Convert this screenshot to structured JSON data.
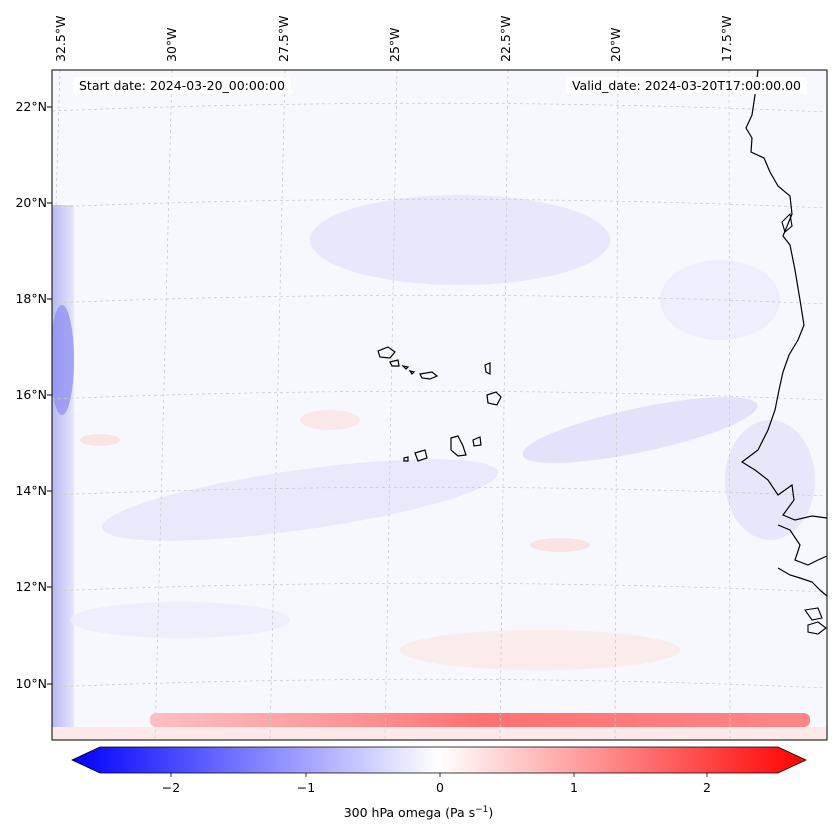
{
  "map": {
    "start_date_label": "Start date: 2024-03-20_00:00:00",
    "valid_date_label": "Valid_date: 2024-03-20T17:00:00.00",
    "lat_labels": [
      "22°N",
      "20°N",
      "18°N",
      "16°N",
      "14°N",
      "12°N",
      "10°N"
    ],
    "lon_labels": [
      "32.5°W",
      "30°W",
      "27.5°W",
      "25°W",
      "22.5°W",
      "20°W",
      "17.5°W"
    ],
    "field_colors": {
      "negative": "#0000ff",
      "zero": "#ffffff",
      "positive": "#ff0000"
    }
  },
  "colorbar": {
    "title": "300 hPa omega (Pa s",
    "title_sup": "−1",
    "title_end": ")",
    "ticks": [
      "−2",
      "−1",
      "0",
      "1",
      "2"
    ],
    "tick_values": [
      -2,
      -1,
      0,
      1,
      2
    ],
    "range": [
      -2.6,
      2.6
    ]
  }
}
